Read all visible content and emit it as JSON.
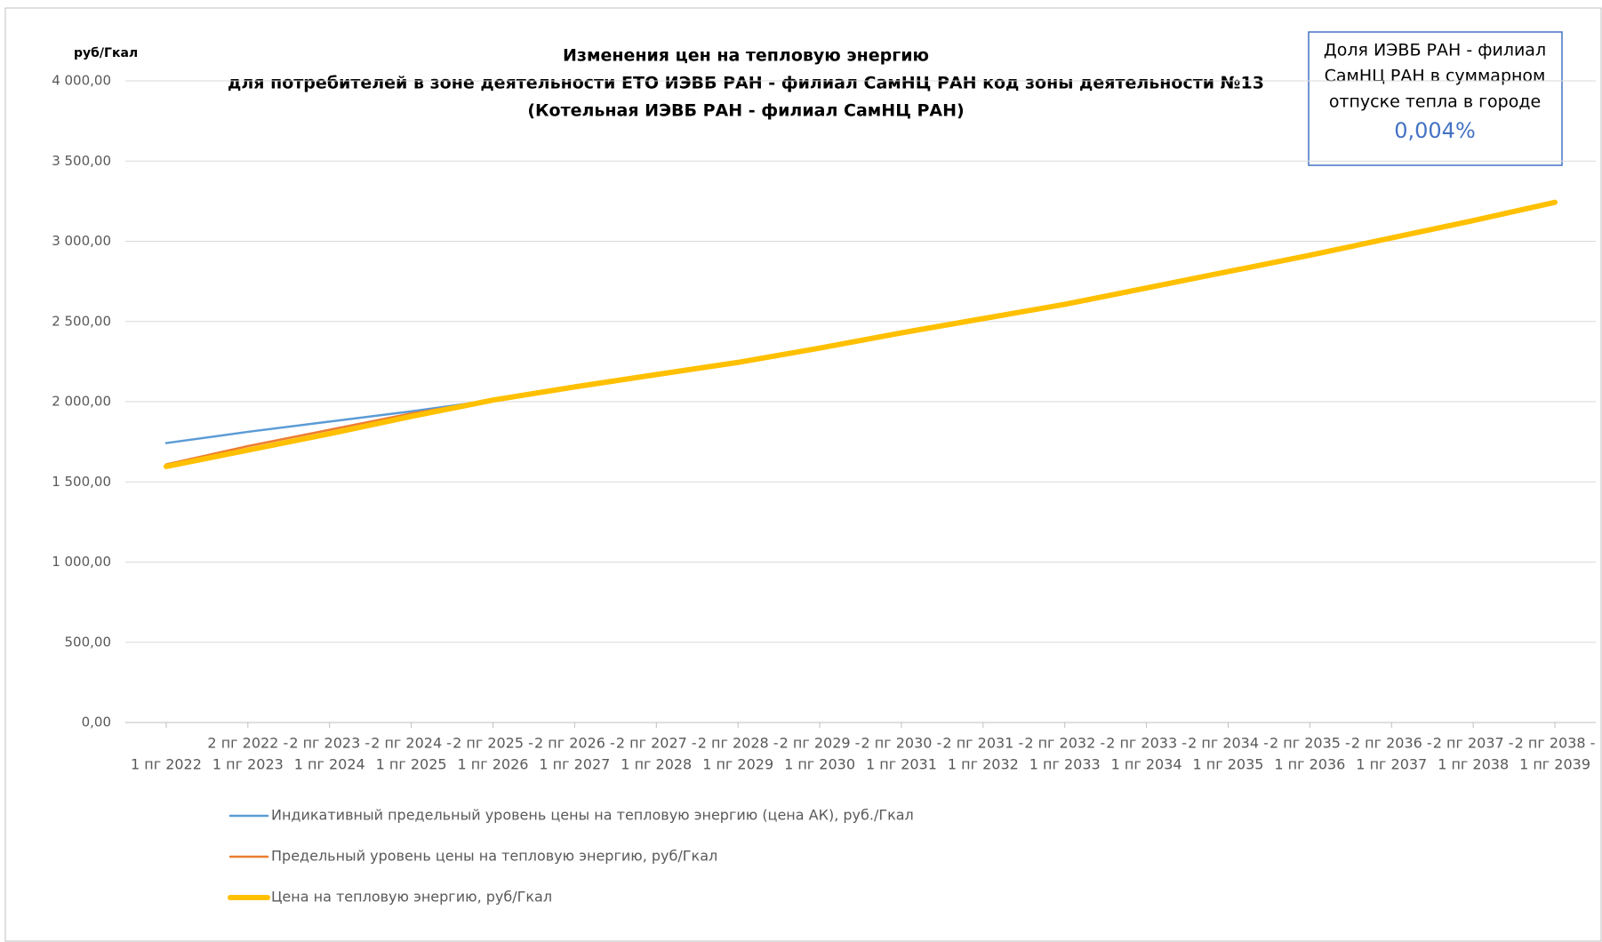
{
  "chart_data": {
    "type": "line",
    "title": [
      "Изменения цен на тепловую энергию",
      "для потребителей в зоне деятельности ЕТО ИЭВБ РАН - филиал СамНЦ РАН код зоны деятельности №13",
      "(Котельная ИЭВБ РАН - филиал СамНЦ РАН)"
    ],
    "y_label": "руб/Гкал",
    "info_box": {
      "lines": [
        "Доля  ИЭВБ РАН - филиал",
        "СамНЦ РАН в суммарном",
        "отпуске тепла в городе"
      ],
      "value": "0,004%"
    },
    "categories": [
      [
        "1 пг 2022"
      ],
      [
        "2 пг 2022 -",
        "1 пг 2023"
      ],
      [
        "2 пг 2023 -",
        "1 пг 2024"
      ],
      [
        "2 пг 2024 -",
        "1 пг 2025"
      ],
      [
        "2 пг 2025 -",
        "1 пг 2026"
      ],
      [
        "2 пг 2026 -",
        "1 пг 2027"
      ],
      [
        "2 пг 2027 -",
        "1 пг 2028"
      ],
      [
        "2 пг 2028 -",
        "1 пг 2029"
      ],
      [
        "2 пг 2029 -",
        "1 пг 2030"
      ],
      [
        "2 пг 2030 -",
        "1 пг 2031"
      ],
      [
        "2 пг 2031 -",
        "1 пг 2032"
      ],
      [
        "2 пг 2032 -",
        "1 пг 2033"
      ],
      [
        "2 пг 2033 -",
        "1 пг 2034"
      ],
      [
        "2 пг 2034 -",
        "1 пг 2035"
      ],
      [
        "2 пг 2035 -",
        "1 пг 2036"
      ],
      [
        "2 пг 2036 -",
        "1 пг 2037"
      ],
      [
        "2 пг 2037 -",
        "1 пг 2038"
      ],
      [
        "2 пг 2038 -",
        "1 пг 2039"
      ]
    ],
    "series": [
      {
        "name": "Индикативный предельный уровень цены на тепловую энергию  (цена АК), руб./Гкал",
        "color": "#5b9bd5",
        "width": 2.5,
        "values": [
          1742,
          1812,
          1876,
          1940,
          2010,
          2092,
          2169,
          2245,
          2334,
          2429,
          2518,
          2607,
          2709,
          2811,
          2913,
          3021,
          3129,
          3243
        ]
      },
      {
        "name": "Предельный уровень цены на тепловую энергию, руб/Гкал",
        "color": "#ed7d31",
        "width": 2.5,
        "values": [
          1609,
          1723,
          1825,
          1927,
          2010,
          2092,
          2169,
          2245,
          2334,
          2429,
          2518,
          2607,
          2709,
          2811,
          2913,
          3021,
          3129,
          3243
        ]
      },
      {
        "name": "Цена на тепловую энергию, руб/Гкал",
        "color": "#ffc000",
        "width": 6,
        "values": [
          1596,
          1698,
          1800,
          1908,
          2010,
          2092,
          2169,
          2245,
          2334,
          2429,
          2518,
          2607,
          2709,
          2811,
          2913,
          3021,
          3129,
          3243
        ]
      }
    ],
    "ylim": [
      0,
      4000
    ],
    "yticks": [
      {
        "value": 0,
        "label": "0,00"
      },
      {
        "value": 500,
        "label": "500,00"
      },
      {
        "value": 1000,
        "label": "1 000,00"
      },
      {
        "value": 1500,
        "label": "1 500,00"
      },
      {
        "value": 2000,
        "label": "2 000,00"
      },
      {
        "value": 2500,
        "label": "2 500,00"
      },
      {
        "value": 3000,
        "label": "3 000,00"
      },
      {
        "value": 3500,
        "label": "3 500,00"
      },
      {
        "value": 4000,
        "label": "4 000,00"
      }
    ],
    "grid": true
  }
}
